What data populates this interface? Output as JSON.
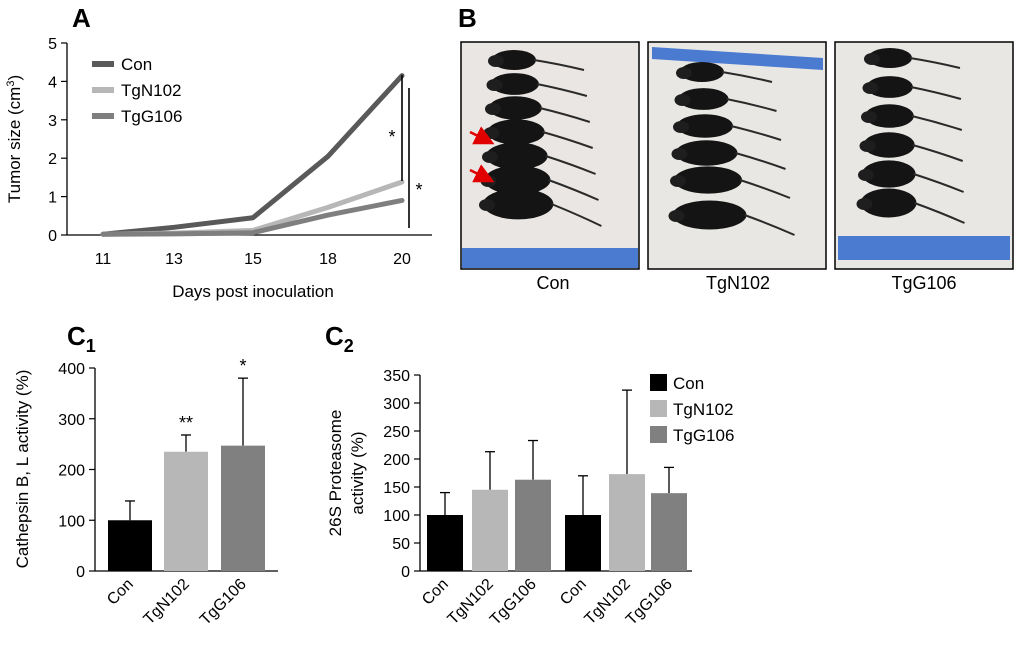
{
  "panel_labels": {
    "a": "A",
    "b": "B",
    "c1": "C",
    "c1_sub": "1",
    "c2": "C",
    "c2_sub": "2"
  },
  "chart_data": [
    {
      "id": "A",
      "type": "line",
      "title": "",
      "xlabel": "Days post inoculation",
      "ylabel_main": "Tumor size (cm",
      "ylabel_sup": "3",
      "ylabel_close": ")",
      "categories": [
        "11",
        "13",
        "15",
        "18",
        "20"
      ],
      "ylim": [
        0,
        5
      ],
      "yticks": [
        "0",
        "1",
        "2",
        "3",
        "4",
        "5"
      ],
      "series": [
        {
          "name": "Con",
          "color": "#595959",
          "values": [
            0.02,
            0.2,
            0.45,
            2.05,
            4.15
          ]
        },
        {
          "name": "TgN102",
          "color": "#b7b7b7",
          "values": [
            0.02,
            0.05,
            0.12,
            0.72,
            1.38
          ]
        },
        {
          "name": "TgG106",
          "color": "#7f7f7f",
          "values": [
            0.02,
            0.03,
            0.06,
            0.52,
            0.9
          ]
        }
      ],
      "annotations": [
        "*",
        "*"
      ]
    },
    {
      "id": "C1",
      "type": "bar",
      "ylabel": "Cathepsin B, L activity (%)",
      "categories": [
        "Con",
        "TgN102",
        "TgG106"
      ],
      "ylim": [
        0,
        400
      ],
      "yticks": [
        "0",
        "100",
        "200",
        "300",
        "400"
      ],
      "values": [
        100,
        235,
        247
      ],
      "errors": [
        38,
        33,
        133
      ],
      "colors": [
        "#000000",
        "#b7b7b7",
        "#808080"
      ],
      "significance": [
        "",
        "**",
        "*"
      ]
    },
    {
      "id": "C2",
      "type": "bar",
      "ylabel_line1": "26S Proteasome",
      "ylabel_line2": "activity (%)",
      "categories": [
        "Con",
        "TgN102",
        "TgG106",
        "Con",
        "TgN102",
        "TgG106"
      ],
      "ylim": [
        0,
        350
      ],
      "yticks": [
        "0",
        "50",
        "100",
        "150",
        "200",
        "250",
        "300",
        "350"
      ],
      "values": [
        100,
        145,
        163,
        100,
        173,
        139
      ],
      "errors": [
        40,
        68,
        70,
        70,
        150,
        46
      ],
      "colors": [
        "#000000",
        "#b7b7b7",
        "#808080",
        "#000000",
        "#b7b7b7",
        "#808080"
      ],
      "legend": [
        {
          "name": "Con",
          "color": "#000000"
        },
        {
          "name": "TgN102",
          "color": "#b7b7b7"
        },
        {
          "name": "TgG106",
          "color": "#808080"
        }
      ]
    }
  ],
  "photos": {
    "captions": [
      "Con",
      "TgN102",
      "TgG106"
    ],
    "mice_counts": [
      7,
      6,
      6
    ]
  }
}
